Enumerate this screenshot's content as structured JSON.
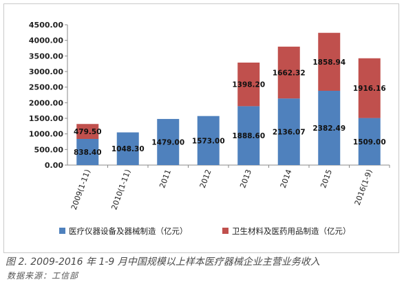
{
  "chart_data": {
    "type": "bar",
    "stacked": true,
    "categories": [
      "2009(1-11)",
      "2010(1-11)",
      "2011",
      "2012",
      "2013",
      "2014",
      "2015",
      "2016(1-9)"
    ],
    "series": [
      {
        "name": "医疗仪器设备及器械制造（亿元）",
        "color": "#4f81bd",
        "values": [
          838.4,
          1048.3,
          1479.0,
          1573.0,
          1888.6,
          2136.07,
          2382.49,
          1509.0
        ],
        "labels": [
          "838.40",
          "1048.30",
          "1479.00",
          "1573.00",
          "1888.60",
          "2136.07",
          "2382.49",
          "1509.00"
        ]
      },
      {
        "name": "卫生材料及医药用品制造（亿元）",
        "color": "#c0504d",
        "values": [
          479.5,
          null,
          null,
          null,
          1398.2,
          1662.32,
          1858.94,
          1916.16
        ],
        "labels": [
          "479.50",
          null,
          null,
          null,
          "1398.20",
          "1662.32",
          "1858.94",
          "1916.16"
        ]
      }
    ],
    "ylim": [
      0,
      4500
    ],
    "yticks": [
      "0.00",
      "500.00",
      "1000.00",
      "1500.00",
      "2000.00",
      "2500.00",
      "3000.00",
      "3500.00",
      "4000.00",
      "4500.00"
    ],
    "legend_position": "bottom",
    "grid": false
  },
  "caption": "图 2. 2009-2016 年 1-9 月中国规模以上样本医疗器械企业主营业务收入",
  "source": "数据来源：工信部"
}
